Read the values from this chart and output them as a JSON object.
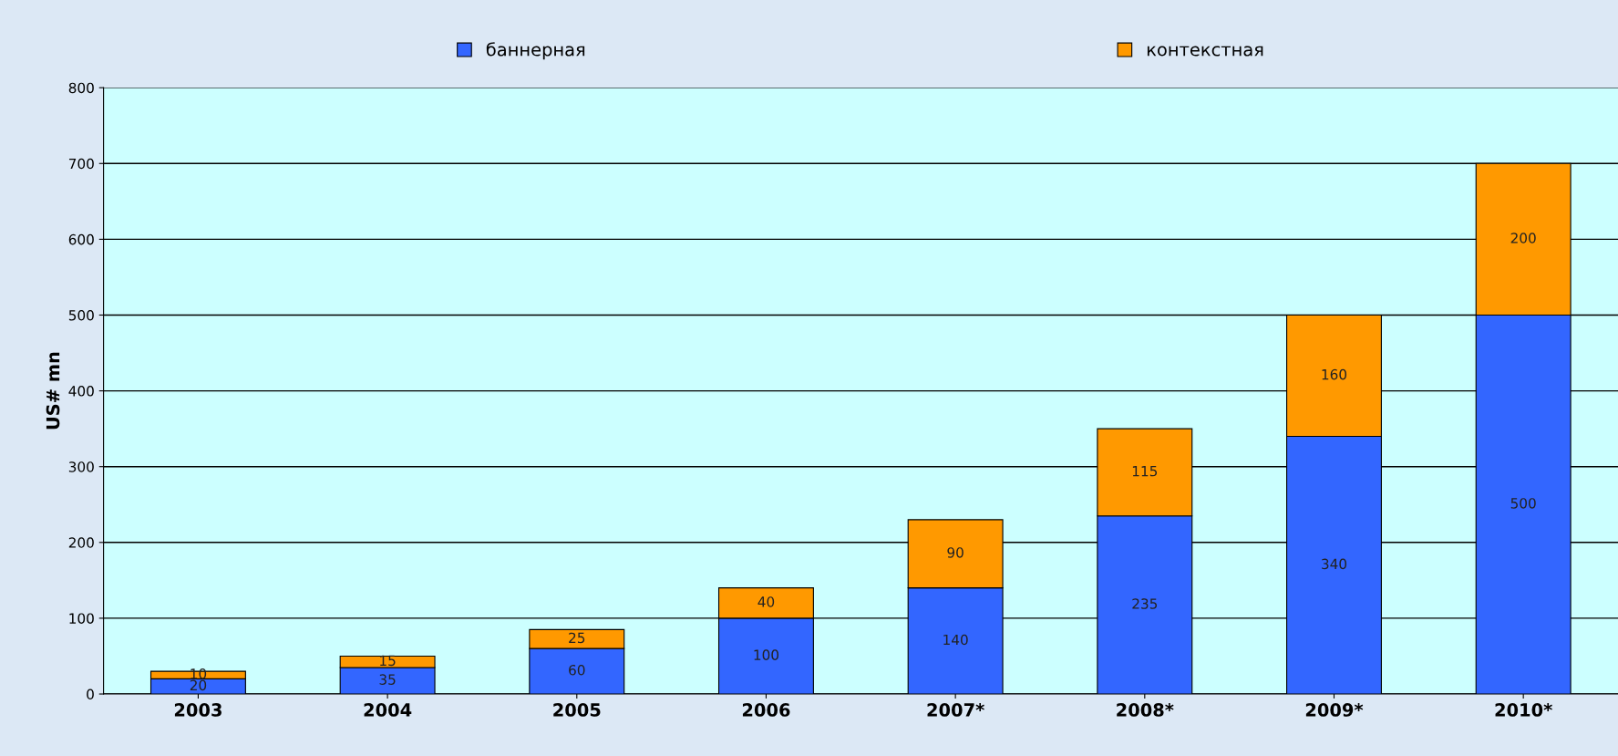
{
  "chart_data": {
    "type": "bar",
    "stacked": true,
    "ylabel": "US# mn",
    "categories": [
      "2003",
      "2004",
      "2005",
      "2006",
      "2007*",
      "2008*",
      "2009*",
      "2010*"
    ],
    "series": [
      {
        "name": "баннерная",
        "color": "#3366ff",
        "values": [
          20,
          35,
          60,
          100,
          140,
          235,
          340,
          500
        ]
      },
      {
        "name": "контекстная",
        "color": "#ff9900",
        "values": [
          10,
          15,
          25,
          40,
          90,
          115,
          160,
          200
        ]
      }
    ],
    "ylim": [
      0,
      800
    ],
    "yticks": [
      0,
      100,
      200,
      300,
      400,
      500,
      600,
      700,
      800
    ],
    "grid": "y",
    "legend": "top",
    "data_labels": true
  }
}
